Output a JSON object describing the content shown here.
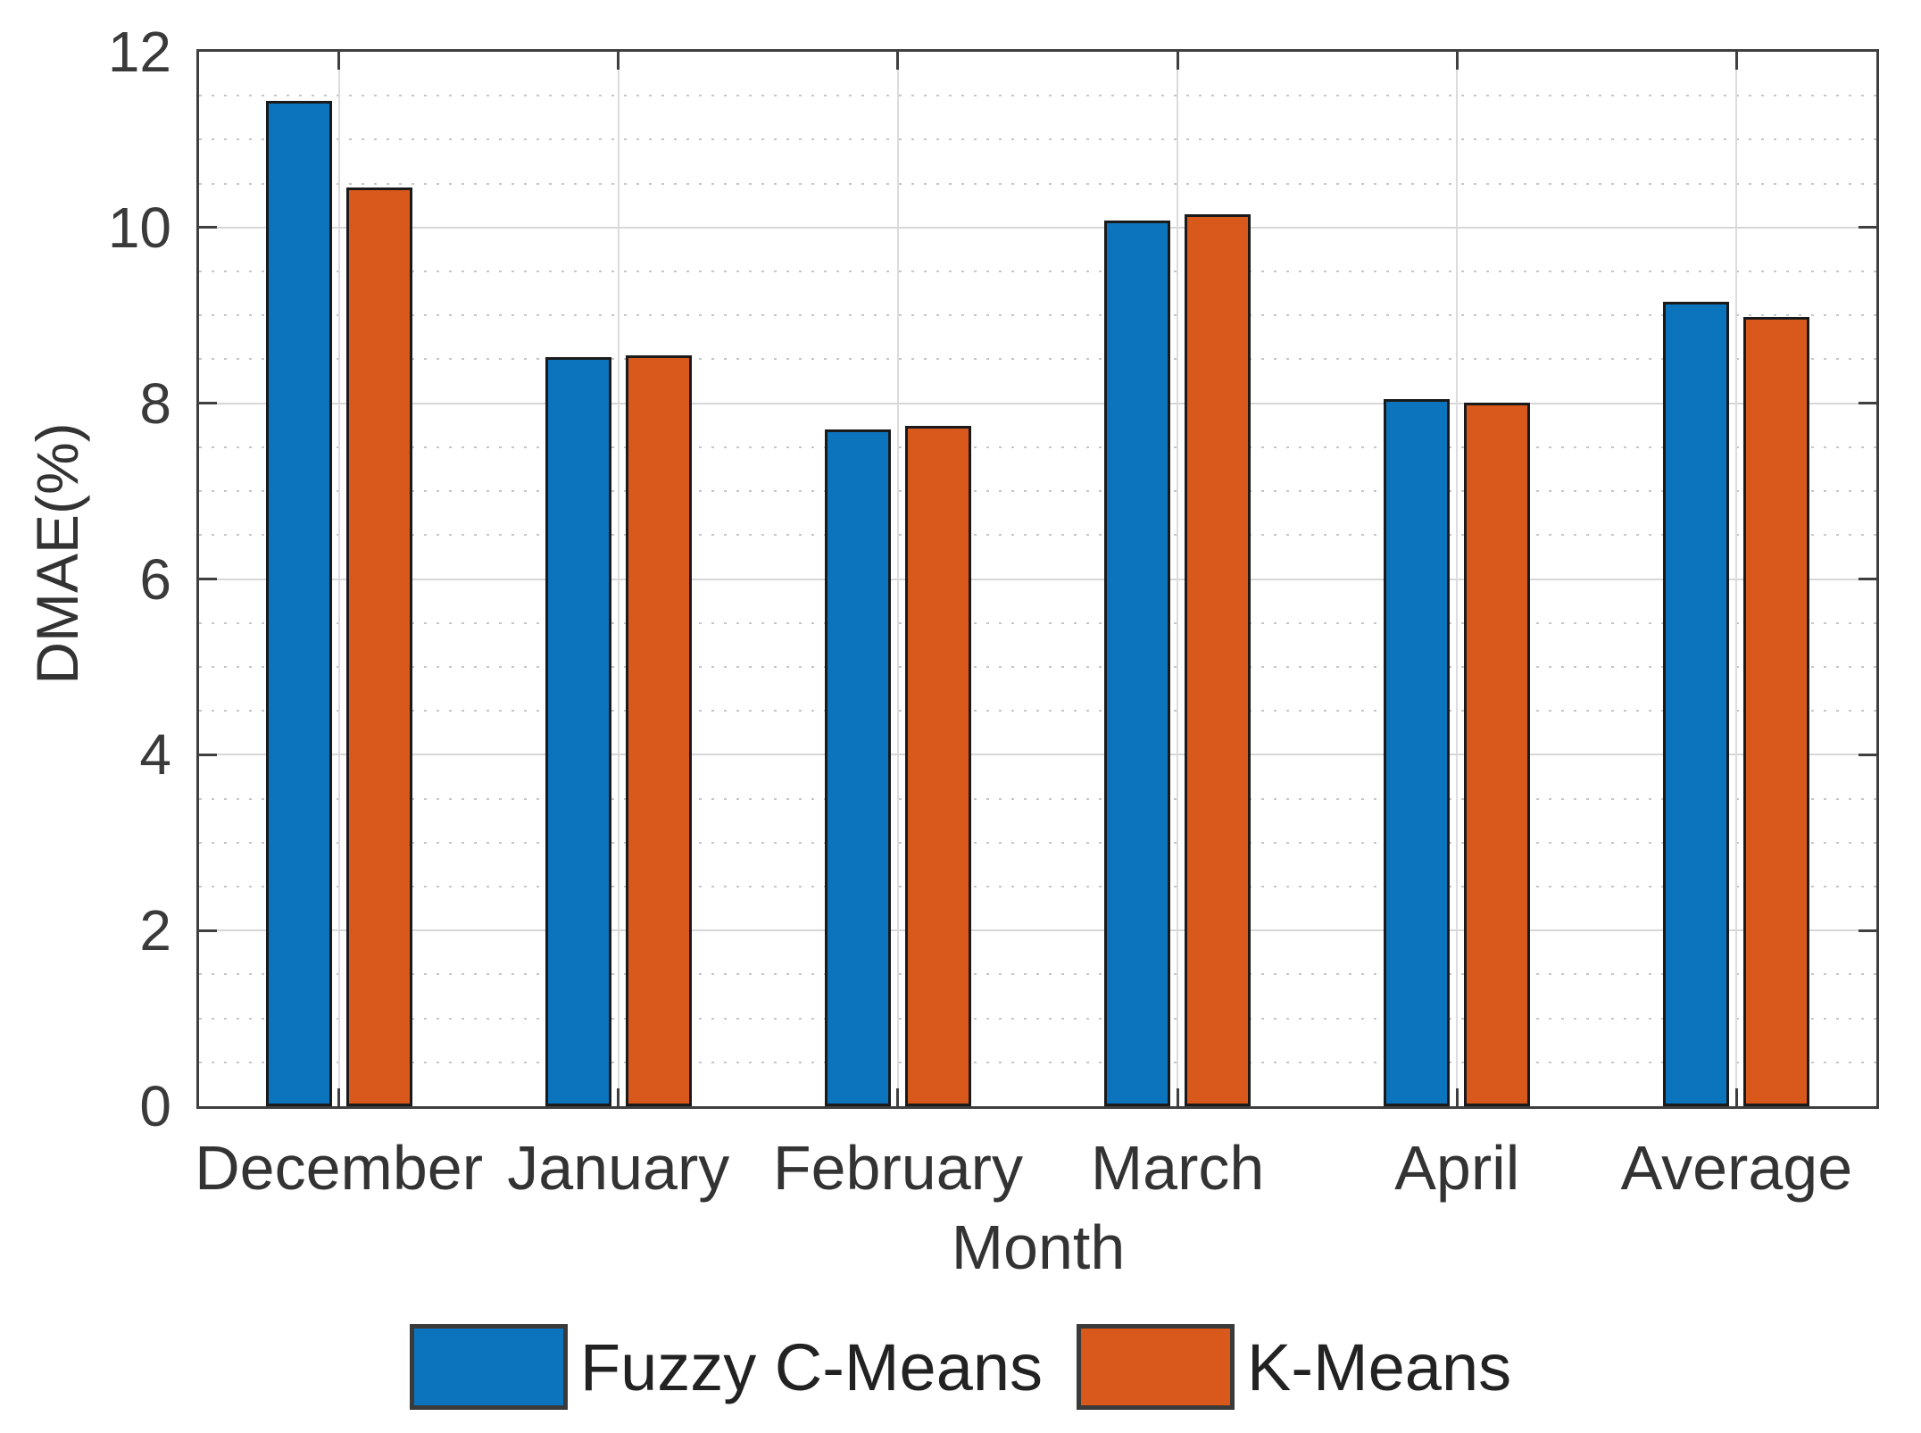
{
  "chart_data": {
    "type": "bar",
    "title": "",
    "categories": [
      "December",
      "January",
      "February",
      "March",
      "April",
      "Average"
    ],
    "series": [
      {
        "name": "Fuzzy C-Means",
        "color": "#0C74BD",
        "values": [
          11.44,
          8.53,
          7.7,
          10.08,
          8.05,
          9.16
        ]
      },
      {
        "name": "K-Means",
        "color": "#D9591C",
        "values": [
          10.46,
          8.55,
          7.74,
          10.15,
          8.01,
          8.98
        ]
      }
    ],
    "xlabel": "Month",
    "ylabel": "DMAE(%)",
    "ylim": [
      0,
      12
    ],
    "yticks": [
      0,
      2,
      4,
      6,
      8,
      10,
      12
    ],
    "minor_tick_step": 0.5,
    "grid": {
      "horizontal_major": "solid",
      "horizontal_minor": "dotted",
      "vertical": "solid at category centers",
      "major_color": "#D7D7D7",
      "minor_color": "#C6C6C6"
    },
    "axis_color": "#3F3F3F",
    "bar_edge_color": "#1A1A1A",
    "legend_position": "below plot, horizontal, centered"
  }
}
